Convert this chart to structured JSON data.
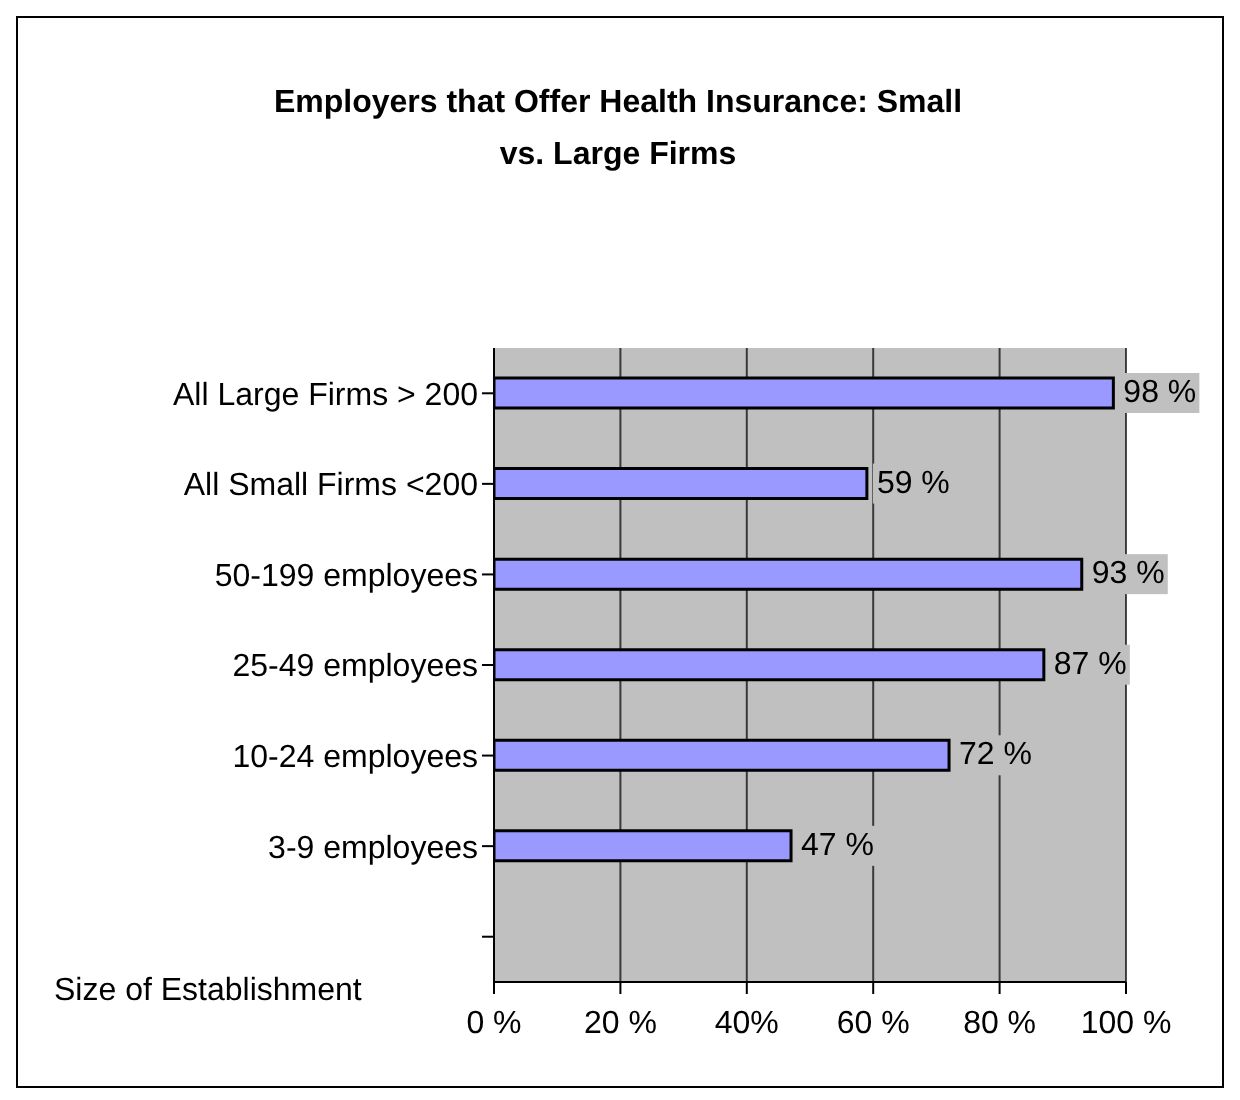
{
  "chart_data": {
    "type": "bar",
    "orientation": "horizontal",
    "title": "Employers that Offer Health Insurance: Small vs. Large Firms",
    "ylabel": "Size of Establishment",
    "categories": [
      "All Large Firms > 200",
      "All Small Firms <200",
      "50-199 employees",
      "25-49 employees",
      "10-24 employees",
      "3-9 employees",
      null
    ],
    "values": [
      98,
      59,
      93,
      87,
      72,
      47,
      null
    ],
    "value_labels": [
      "98 %",
      "59 %",
      "93 %",
      "87 %",
      "72 %",
      "47 %",
      null
    ],
    "color": "#9999ff",
    "xlim": [
      0,
      100
    ],
    "xticks": [
      {
        "value": 0,
        "label": "0 %"
      },
      {
        "value": 20,
        "label": "20 %"
      },
      {
        "value": 40,
        "label": "40%"
      },
      {
        "value": 60,
        "label": "60 %"
      },
      {
        "value": 80,
        "label": "80 %"
      },
      {
        "value": 100,
        "label": "100 %"
      }
    ],
    "grid": "x"
  }
}
